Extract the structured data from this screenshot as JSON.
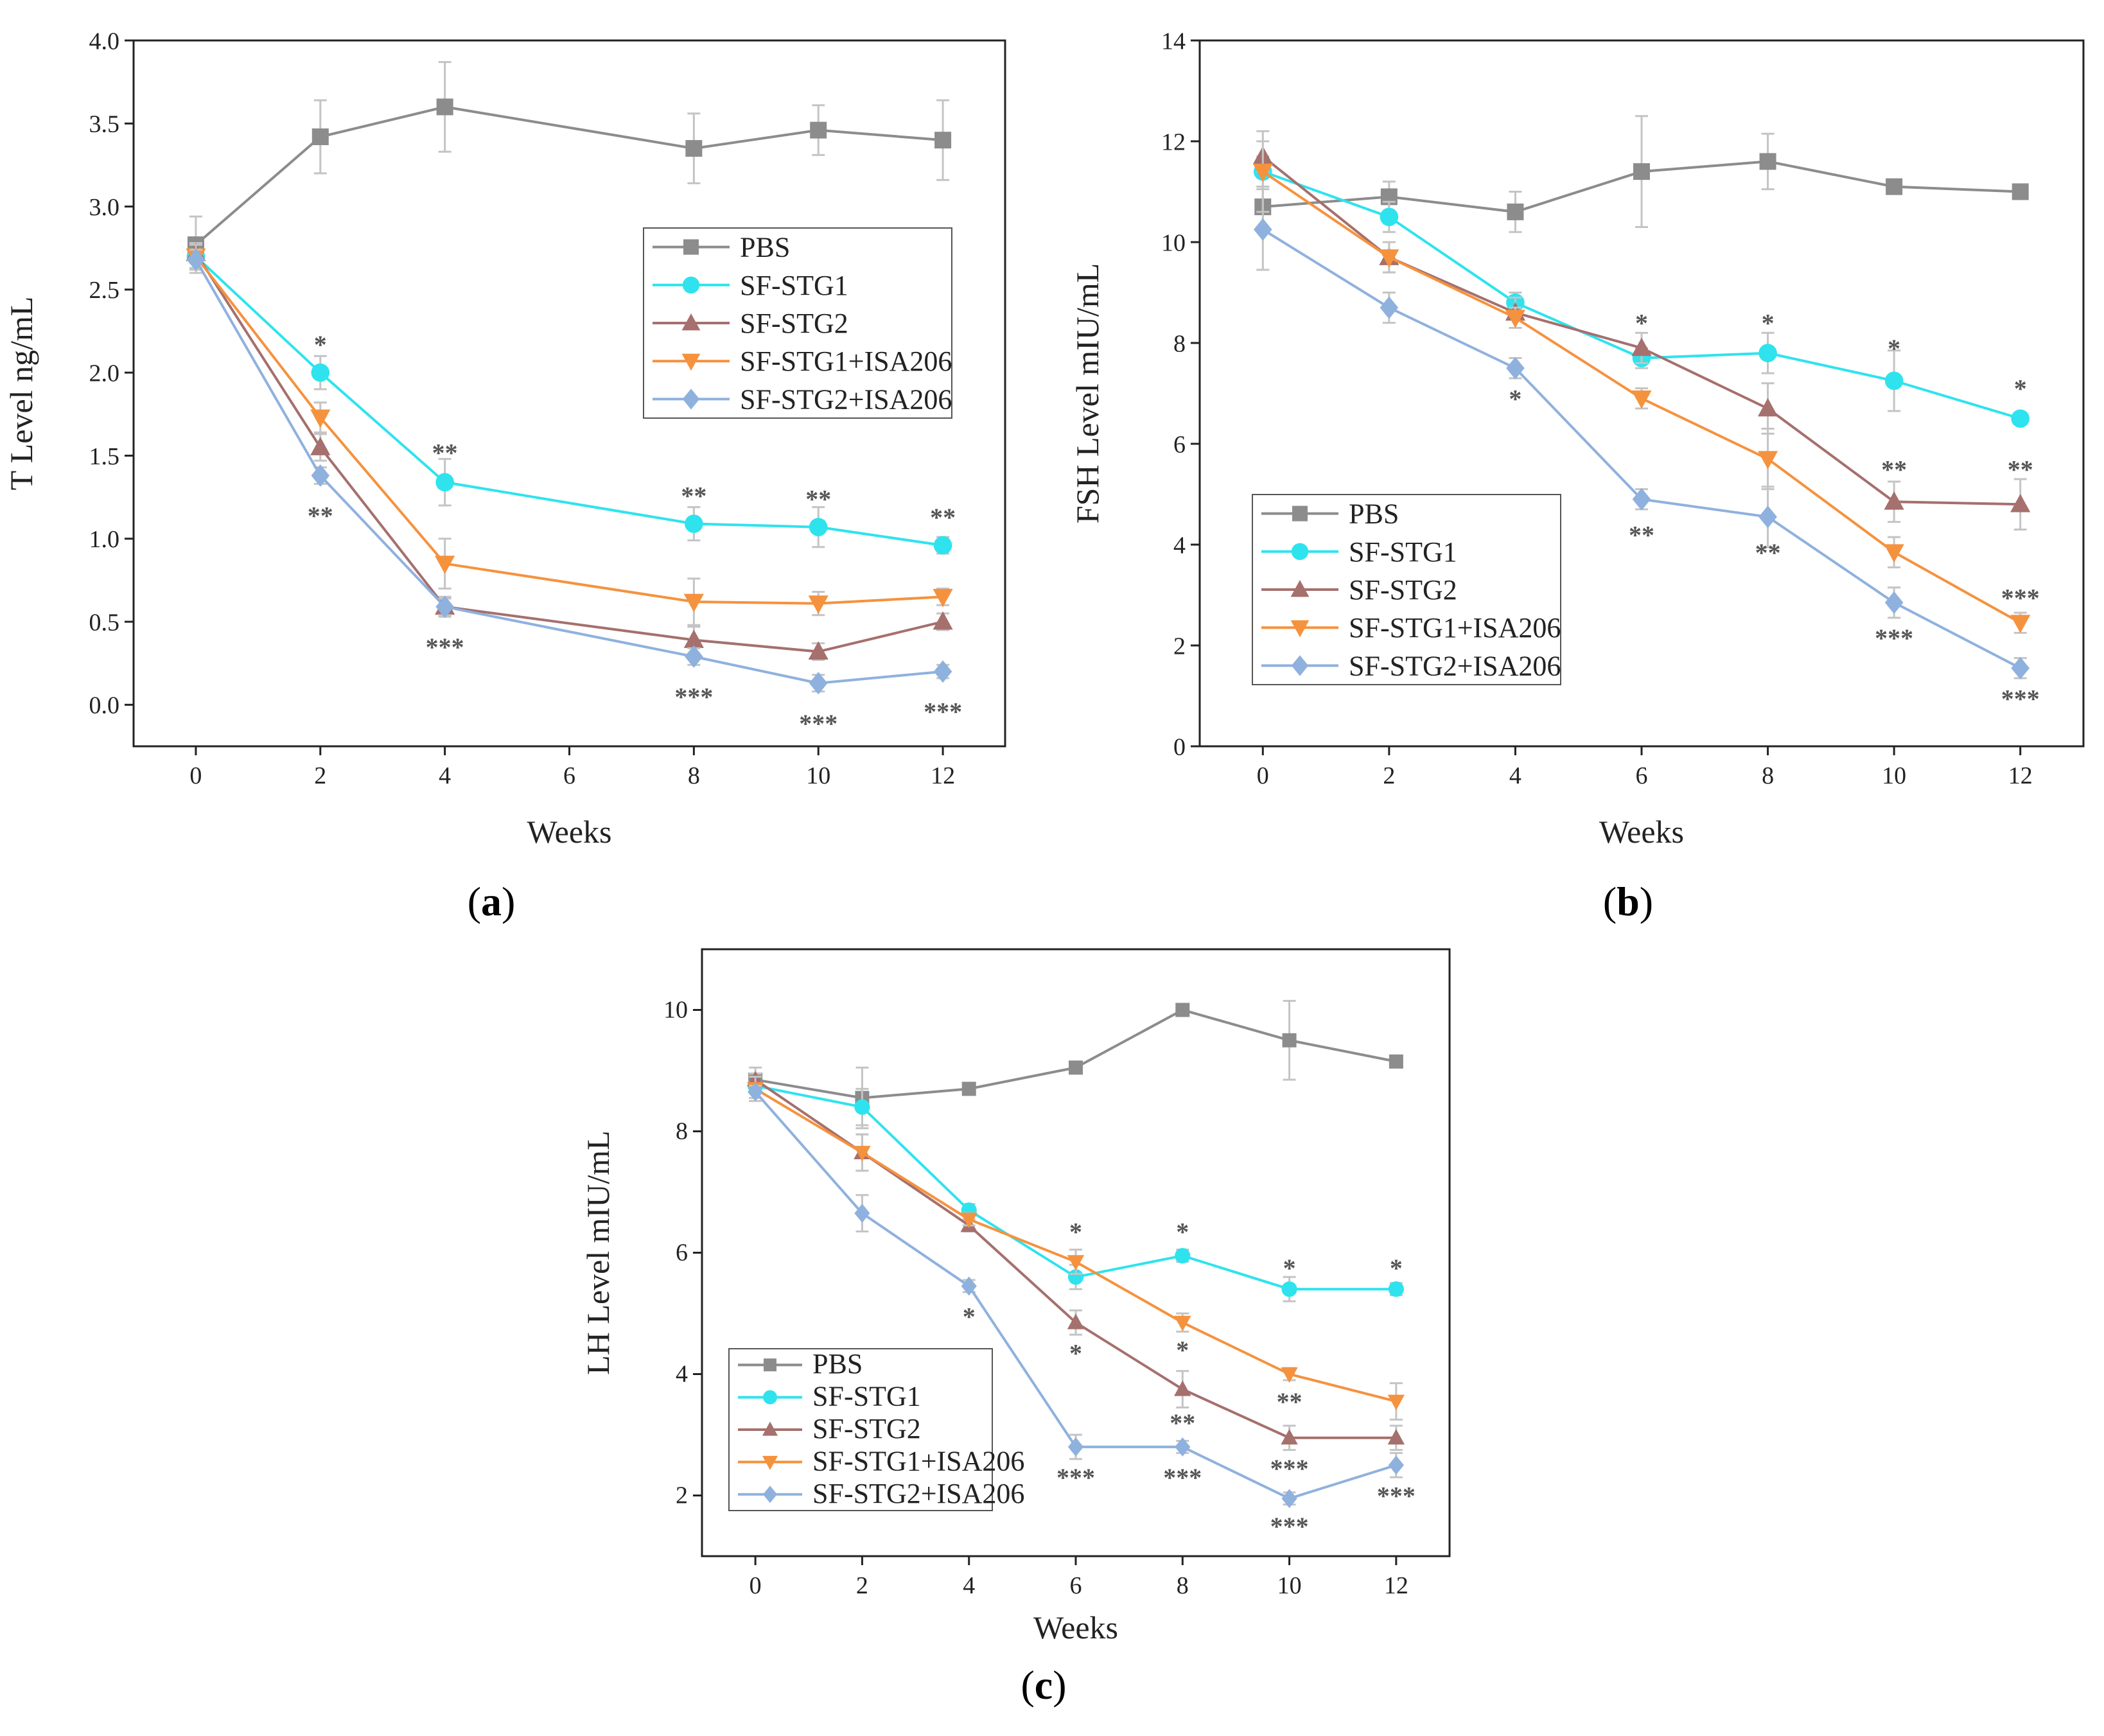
{
  "colors": {
    "PBS": "#8c8c8c",
    "SF-STG1": "#2ee3ee",
    "SF-STG2": "#a5706d",
    "SF-STG1+ISA206": "#f5923e",
    "SF-STG2+ISA206": "#8fb1de",
    "errorbar": "#c4c4c4",
    "stars": "#555555"
  },
  "chart_data": [
    {
      "id": "a",
      "type": "line",
      "caption": {
        "open": "(",
        "letter": "a",
        "close": ")"
      },
      "xlabel": "Weeks",
      "ylabel": "T Level ng/mL",
      "xlim": [
        -1,
        13
      ],
      "ylim": [
        -0.25,
        4.0
      ],
      "xticks": [
        0,
        2,
        4,
        6,
        8,
        10,
        12
      ],
      "yticks": [
        0.0,
        0.5,
        1.0,
        1.5,
        2.0,
        2.5,
        3.0,
        3.5,
        4.0
      ],
      "ytick_labels": [
        "0.0",
        "0.5",
        "1.0",
        "1.5",
        "2.0",
        "2.5",
        "3.0",
        "3.5",
        "4.0"
      ],
      "legend_position": "center-right",
      "series": [
        {
          "name": "PBS",
          "marker": "square",
          "x": [
            0,
            2,
            4,
            8,
            10,
            12
          ],
          "y": [
            2.77,
            3.42,
            3.6,
            3.35,
            3.46,
            3.4
          ],
          "err": [
            0.17,
            0.22,
            0.27,
            0.21,
            0.15,
            0.24
          ]
        },
        {
          "name": "SF-STG1",
          "marker": "circle",
          "x": [
            0,
            2,
            4,
            8,
            10,
            12
          ],
          "y": [
            2.7,
            2.0,
            1.34,
            1.09,
            1.07,
            0.96
          ],
          "err": [
            0.08,
            0.1,
            0.14,
            0.1,
            0.12,
            0.05
          ]
        },
        {
          "name": "SF-STG2",
          "marker": "triangle-up",
          "x": [
            0,
            2,
            4,
            8,
            10,
            12
          ],
          "y": [
            2.72,
            1.55,
            0.59,
            0.39,
            0.32,
            0.5
          ],
          "err": [
            0.06,
            0.08,
            0.06,
            0.08,
            0.05,
            0.05
          ]
        },
        {
          "name": "SF-STG1+ISA206",
          "marker": "triangle-down",
          "x": [
            0,
            2,
            4,
            8,
            10,
            12
          ],
          "y": [
            2.7,
            1.73,
            0.85,
            0.62,
            0.61,
            0.65
          ],
          "err": [
            0.07,
            0.09,
            0.15,
            0.14,
            0.07,
            0.05
          ]
        },
        {
          "name": "SF-STG2+ISA206",
          "marker": "diamond",
          "x": [
            0,
            2,
            4,
            8,
            10,
            12
          ],
          "y": [
            2.68,
            1.38,
            0.59,
            0.29,
            0.13,
            0.2
          ],
          "err": [
            0.06,
            0.05,
            0.05,
            0.05,
            0.05,
            0.04
          ]
        }
      ],
      "annotations": [
        {
          "x": 2,
          "y": 2.17,
          "text": "*"
        },
        {
          "x": 2,
          "y": 1.14,
          "text": "**"
        },
        {
          "x": 4,
          "y": 1.52,
          "text": "**"
        },
        {
          "x": 4,
          "y": 0.35,
          "text": "***"
        },
        {
          "x": 8,
          "y": 1.26,
          "text": "**"
        },
        {
          "x": 8,
          "y": 0.05,
          "text": "***"
        },
        {
          "x": 10,
          "y": 1.24,
          "text": "**"
        },
        {
          "x": 10,
          "y": -0.11,
          "text": "***"
        },
        {
          "x": 12,
          "y": 1.13,
          "text": "**"
        },
        {
          "x": 12,
          "y": -0.04,
          "text": "***"
        }
      ]
    },
    {
      "id": "b",
      "type": "line",
      "caption": {
        "open": "(",
        "letter": "b",
        "close": ")"
      },
      "xlabel": "Weeks",
      "ylabel": "FSH Level mIU/mL",
      "xlim": [
        -1,
        13
      ],
      "ylim": [
        0,
        14
      ],
      "xticks": [
        0,
        2,
        4,
        6,
        8,
        10,
        12
      ],
      "yticks": [
        0,
        2,
        4,
        6,
        8,
        10,
        12,
        14
      ],
      "ytick_labels": [
        "0",
        "2",
        "4",
        "6",
        "8",
        "10",
        "12",
        "14"
      ],
      "legend_position": "lower-left",
      "series": [
        {
          "name": "PBS",
          "marker": "square",
          "x": [
            0,
            2,
            4,
            6,
            8,
            10,
            12
          ],
          "y": [
            10.7,
            10.9,
            10.6,
            11.4,
            11.6,
            11.1,
            11.0
          ],
          "err": [
            0.4,
            0.3,
            0.4,
            1.1,
            0.55,
            0.1,
            0.1
          ]
        },
        {
          "name": "SF-STG1",
          "marker": "circle",
          "x": [
            0,
            2,
            4,
            6,
            8,
            10,
            12
          ],
          "y": [
            11.4,
            10.5,
            8.8,
            7.7,
            7.8,
            7.25,
            6.5
          ],
          "err": [
            0.3,
            0.3,
            0.2,
            0.2,
            0.4,
            0.6,
            0.1
          ]
        },
        {
          "name": "SF-STG2",
          "marker": "triangle-up",
          "x": [
            0,
            2,
            4,
            6,
            8,
            10,
            12
          ],
          "y": [
            11.7,
            9.7,
            8.6,
            7.9,
            6.7,
            4.85,
            4.8
          ],
          "err": [
            0.3,
            0.3,
            0.3,
            0.3,
            0.5,
            0.4,
            0.5
          ]
        },
        {
          "name": "SF-STG1+ISA206",
          "marker": "triangle-down",
          "x": [
            0,
            2,
            4,
            6,
            8,
            10,
            12
          ],
          "y": [
            11.4,
            9.7,
            8.5,
            6.9,
            5.7,
            3.85,
            2.45
          ],
          "err": [
            0.8,
            0.3,
            0.2,
            0.2,
            0.6,
            0.3,
            0.2
          ]
        },
        {
          "name": "SF-STG2+ISA206",
          "marker": "diamond",
          "x": [
            0,
            2,
            4,
            6,
            8,
            10,
            12
          ],
          "y": [
            10.25,
            8.7,
            7.5,
            4.9,
            4.55,
            2.85,
            1.55
          ],
          "err": [
            0.8,
            0.3,
            0.2,
            0.2,
            0.6,
            0.3,
            0.2
          ]
        }
      ],
      "annotations": [
        {
          "x": 4,
          "y": 6.9,
          "text": "*"
        },
        {
          "x": 6,
          "y": 8.4,
          "text": "*"
        },
        {
          "x": 6,
          "y": 4.2,
          "text": "**"
        },
        {
          "x": 8,
          "y": 8.4,
          "text": "*"
        },
        {
          "x": 8,
          "y": 3.85,
          "text": "**"
        },
        {
          "x": 10,
          "y": 7.9,
          "text": "*"
        },
        {
          "x": 10,
          "y": 5.5,
          "text": "**"
        },
        {
          "x": 10,
          "y": 2.15,
          "text": "***"
        },
        {
          "x": 12,
          "y": 7.1,
          "text": "*"
        },
        {
          "x": 12,
          "y": 5.5,
          "text": "**"
        },
        {
          "x": 12,
          "y": 2.95,
          "text": "***"
        },
        {
          "x": 12,
          "y": 0.95,
          "text": "***"
        }
      ]
    },
    {
      "id": "c",
      "type": "line",
      "caption": {
        "open": "(",
        "letter": "c",
        "close": ")"
      },
      "xlabel": "Weeks",
      "ylabel": "LH Level mIU/mL",
      "xlim": [
        -1,
        13
      ],
      "ylim": [
        1,
        11
      ],
      "xticks": [
        0,
        2,
        4,
        6,
        8,
        10,
        12
      ],
      "yticks": [
        2,
        4,
        6,
        8,
        10
      ],
      "ytick_labels": [
        "2",
        "4",
        "6",
        "8",
        "10"
      ],
      "legend_position": "lower-left",
      "series": [
        {
          "name": "PBS",
          "marker": "square",
          "x": [
            0,
            2,
            4,
            6,
            8,
            10,
            12
          ],
          "y": [
            8.85,
            8.55,
            8.7,
            9.05,
            10.0,
            9.5,
            9.15
          ],
          "err": [
            0.1,
            0.5,
            0.05,
            0.05,
            0.05,
            0.65,
            0.05
          ]
        },
        {
          "name": "SF-STG1",
          "marker": "circle",
          "x": [
            0,
            2,
            4,
            6,
            8,
            10,
            12
          ],
          "y": [
            8.75,
            8.4,
            6.7,
            5.6,
            5.95,
            5.4,
            5.4
          ],
          "err": [
            0.2,
            0.3,
            0.1,
            0.2,
            0.1,
            0.2,
            0.1
          ]
        },
        {
          "name": "SF-STG2",
          "marker": "triangle-up",
          "x": [
            0,
            2,
            4,
            6,
            8,
            10,
            12
          ],
          "y": [
            8.85,
            7.65,
            6.45,
            4.85,
            3.75,
            2.95,
            2.95
          ],
          "err": [
            0.2,
            0.3,
            0.1,
            0.2,
            0.3,
            0.2,
            0.2
          ]
        },
        {
          "name": "SF-STG1+ISA206",
          "marker": "triangle-down",
          "x": [
            0,
            2,
            4,
            6,
            8,
            10,
            12
          ],
          "y": [
            8.7,
            7.65,
            6.55,
            5.85,
            4.85,
            4.0,
            3.55
          ],
          "err": [
            0.2,
            0.3,
            0.1,
            0.2,
            0.15,
            0.1,
            0.3
          ]
        },
        {
          "name": "SF-STG2+ISA206",
          "marker": "diamond",
          "x": [
            0,
            2,
            4,
            6,
            8,
            10,
            12
          ],
          "y": [
            8.65,
            6.65,
            5.45,
            2.8,
            2.8,
            1.95,
            2.5
          ],
          "err": [
            0.1,
            0.3,
            0.1,
            0.2,
            0.1,
            0.1,
            0.2
          ]
        }
      ],
      "annotations": [
        {
          "x": 4,
          "y": 4.95,
          "text": "*"
        },
        {
          "x": 6,
          "y": 6.35,
          "text": "*"
        },
        {
          "x": 6,
          "y": 4.35,
          "text": "*"
        },
        {
          "x": 6,
          "y": 2.3,
          "text": "***"
        },
        {
          "x": 8,
          "y": 6.35,
          "text": "*"
        },
        {
          "x": 8,
          "y": 4.4,
          "text": "*"
        },
        {
          "x": 8,
          "y": 3.2,
          "text": "**"
        },
        {
          "x": 8,
          "y": 2.3,
          "text": "***"
        },
        {
          "x": 10,
          "y": 5.75,
          "text": "*"
        },
        {
          "x": 10,
          "y": 3.55,
          "text": "**"
        },
        {
          "x": 10,
          "y": 2.45,
          "text": "***"
        },
        {
          "x": 10,
          "y": 1.5,
          "text": "***"
        },
        {
          "x": 12,
          "y": 5.75,
          "text": "*"
        },
        {
          "x": 12,
          "y": 2.0,
          "text": "***"
        }
      ]
    }
  ]
}
